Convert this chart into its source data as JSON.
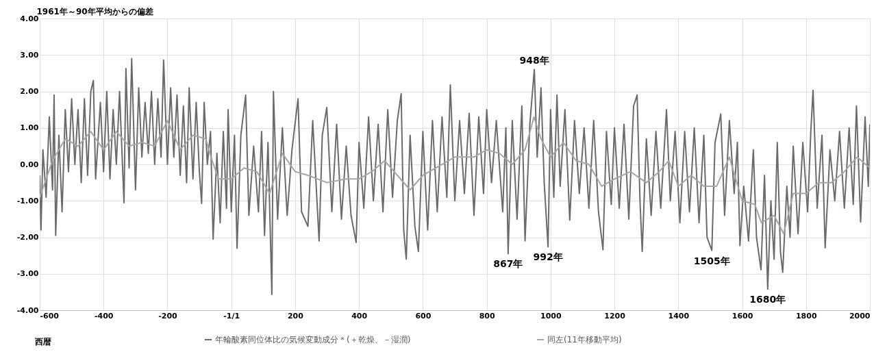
{
  "chart_data": {
    "type": "line",
    "ylabel": "1961年～90年平均からの偏差",
    "xlabel": "西暦",
    "xlim": [
      -600,
      2000
    ],
    "xticks": [
      -600,
      -400,
      -200,
      {
        "value": 0,
        "label": "-1/1"
      },
      200,
      400,
      600,
      800,
      1000,
      1200,
      1400,
      1600,
      1800,
      2000
    ],
    "ylim": [
      -4,
      4
    ],
    "yticks": [
      {
        "value": -4,
        "label": "-4.00"
      },
      {
        "value": -3,
        "label": "-3.00"
      },
      {
        "value": -2,
        "label": "-2.00"
      },
      {
        "value": -1,
        "label": "-1.00"
      },
      {
        "value": 0,
        "label": "0.00"
      },
      {
        "value": 1,
        "label": "1.00"
      },
      {
        "value": 2,
        "label": "2.00"
      },
      {
        "value": 3,
        "label": "3.00"
      },
      {
        "value": 4,
        "label": "4.00"
      }
    ],
    "grid": true,
    "legend": "bottom",
    "series": [
      {
        "name": "年輪酸素同位体比の気候変動成分＊(＋乾燥、－湿潤)",
        "color": "#6b6b6b",
        "x": [
          -600,
          -596,
          -590,
          -580,
          -570,
          -560,
          -555,
          -550,
          -540,
          -530,
          -520,
          -510,
          -500,
          -490,
          -480,
          -470,
          -460,
          -450,
          -440,
          -432,
          -425,
          -410,
          -400,
          -390,
          -380,
          -370,
          -360,
          -350,
          -340,
          -336,
          -330,
          -320,
          -312,
          -300,
          -290,
          -280,
          -270,
          -260,
          -250,
          -240,
          -230,
          -220,
          -212,
          -200,
          -190,
          -180,
          -170,
          -160,
          -150,
          -140,
          -132,
          -120,
          -110,
          -100,
          -93,
          -85,
          -75,
          -65,
          -57,
          -45,
          -35,
          -25,
          -15,
          -10,
          0,
          10,
          18,
          30,
          45,
          55,
          70,
          85,
          95,
          104,
          115,
          127,
          132,
          145,
          160,
          175,
          190,
          209,
          220,
          240,
          255,
          275,
          285,
          299,
          315,
          330,
          345,
          360,
          375,
          391,
          400,
          415,
          430,
          445,
          460,
          475,
          490,
          505,
          520,
          532,
          540,
          548,
          560,
          575,
          586,
          600,
          615,
          630,
          645,
          660,
          675,
          686,
          700,
          715,
          730,
          745,
          760,
          775,
          790,
          800,
          815,
          830,
          850,
          860,
          867,
          880,
          895,
          910,
          920,
          935,
          949,
          958,
          970,
          980,
          992,
          1000,
          1010,
          1020,
          1030,
          1045,
          1060,
          1075,
          1090,
          1105,
          1120,
          1135,
          1150,
          1164,
          1175,
          1190,
          1200,
          1215,
          1230,
          1245,
          1260,
          1271,
          1280,
          1287,
          1300,
          1315,
          1330,
          1345,
          1363,
          1375,
          1390,
          1405,
          1420,
          1435,
          1450,
          1465,
          1480,
          1490,
          1505,
          1515,
          1533,
          1545,
          1560,
          1575,
          1585,
          1593,
          1605,
          1620,
          1635,
          1645,
          1659,
          1670,
          1680,
          1690,
          1700,
          1710,
          1720,
          1727,
          1740,
          1750,
          1760,
          1775,
          1790,
          1805,
          1815,
          1822,
          1835,
          1850,
          1860,
          1875,
          1890,
          1905,
          1920,
          1935,
          1948,
          1958,
          1971,
          1985,
          1995,
          2000
        ],
        "values": [
          -0.3,
          -1.8,
          0.4,
          -0.9,
          1.3,
          -0.7,
          1.9,
          -1.95,
          0.8,
          -1.3,
          1.5,
          -0.2,
          1.8,
          0.0,
          1.5,
          -0.5,
          1.8,
          -0.3,
          2.0,
          2.3,
          -0.4,
          1.7,
          -0.2,
          2.0,
          -0.4,
          1.5,
          0.0,
          2.0,
          -0.2,
          -1.05,
          2.63,
          -0.1,
          2.9,
          -0.7,
          2.1,
          0.2,
          1.7,
          0.3,
          2.0,
          0.0,
          1.8,
          0.2,
          2.86,
          0.0,
          2.1,
          0.2,
          1.9,
          -0.3,
          1.6,
          -0.5,
          2.1,
          -0.4,
          1.7,
          -0.2,
          -1.07,
          1.7,
          0.0,
          0.9,
          -2.05,
          0.3,
          -1.6,
          0.9,
          -1.2,
          1.5,
          -1.3,
          0.8,
          -2.3,
          0.8,
          1.9,
          -1.4,
          0.5,
          -1.3,
          0.9,
          -1.95,
          0.6,
          -3.57,
          2.0,
          -1.5,
          1.0,
          -1.4,
          0.4,
          1.8,
          -1.3,
          -1.7,
          1.2,
          -2.1,
          0.8,
          1.56,
          -1.3,
          1.1,
          -1.5,
          0.5,
          -1.4,
          -2.14,
          0.6,
          -1.2,
          1.3,
          -1.0,
          1.1,
          -1.3,
          1.5,
          -0.9,
          1.2,
          1.94,
          -1.8,
          -2.6,
          0.8,
          -1.7,
          -2.39,
          0.9,
          -1.8,
          1.2,
          -1.3,
          1.3,
          -0.9,
          2.18,
          -1.0,
          1.2,
          -0.8,
          1.4,
          -1.4,
          1.3,
          -0.8,
          1.5,
          -0.5,
          1.2,
          -1.3,
          1.0,
          -2.45,
          1.2,
          -1.5,
          1.6,
          -2.1,
          1.1,
          2.6,
          0.2,
          2.1,
          -0.5,
          -2.26,
          1.5,
          -0.9,
          1.9,
          -0.6,
          1.5,
          -1.53,
          1.2,
          -0.8,
          1.0,
          -1.2,
          1.2,
          -1.3,
          -2.34,
          0.9,
          -1.1,
          1.0,
          -1.2,
          1.1,
          -1.5,
          1.6,
          1.9,
          -1.0,
          -2.39,
          0.7,
          -1.4,
          0.9,
          -1.2,
          1.5,
          -1.0,
          0.9,
          -1.6,
          0.9,
          -1.3,
          1.0,
          -1.6,
          0.8,
          -2.0,
          -2.36,
          0.6,
          1.38,
          -1.4,
          1.2,
          -0.8,
          0.6,
          -2.23,
          -0.6,
          -2.1,
          0.4,
          -2.0,
          -2.89,
          -0.3,
          -3.42,
          -1.0,
          -2.6,
          0.6,
          -2.4,
          -2.96,
          -0.6,
          -2.0,
          0.5,
          -1.9,
          0.6,
          -1.3,
          0.9,
          2.03,
          -1.2,
          0.8,
          -2.29,
          0.4,
          -1.0,
          0.9,
          -1.2,
          1.0,
          -1.1,
          1.6,
          -1.58,
          1.3,
          -0.6,
          1.1
        ]
      },
      {
        "name": "同左(11年移動平均)",
        "color": "#a6a6a6",
        "x": [
          -600,
          -560,
          -520,
          -480,
          -440,
          -400,
          -360,
          -320,
          -280,
          -240,
          -200,
          -160,
          -120,
          -80,
          -60,
          -40,
          0,
          40,
          80,
          120,
          160,
          200,
          240,
          300,
          360,
          400,
          440,
          480,
          520,
          560,
          600,
          640,
          700,
          760,
          800,
          840,
          880,
          920,
          948,
          970,
          1000,
          1040,
          1080,
          1120,
          1160,
          1200,
          1250,
          1300,
          1340,
          1370,
          1400,
          1440,
          1480,
          1520,
          1560,
          1600,
          1640,
          1660,
          1700,
          1730,
          1760,
          1800,
          1840,
          1880,
          1920,
          1960,
          2000
        ],
        "values": [
          -0.9,
          0.1,
          0.7,
          0.5,
          0.9,
          0.4,
          0.9,
          0.5,
          0.6,
          0.5,
          1.2,
          0.4,
          0.8,
          0.7,
          0.1,
          -0.4,
          -0.4,
          -0.1,
          -0.2,
          -0.8,
          0.3,
          -0.2,
          -0.3,
          -0.5,
          -0.4,
          -0.4,
          -0.2,
          0.1,
          -0.3,
          -0.7,
          -0.3,
          -0.1,
          0.2,
          0.2,
          0.4,
          0.3,
          0.0,
          0.4,
          1.3,
          0.7,
          0.2,
          0.6,
          0.1,
          0.0,
          -0.6,
          -0.4,
          -0.2,
          -0.5,
          -0.2,
          0.1,
          -0.6,
          -0.3,
          -0.6,
          -0.6,
          0.2,
          -1.0,
          -1.1,
          -1.6,
          -1.4,
          -1.9,
          -0.8,
          -0.8,
          -0.5,
          -0.5,
          -0.2,
          0.2,
          -0.1
        ]
      }
    ],
    "annotations": [
      {
        "text": "948年",
        "x": 949,
        "y": 2.6
      },
      {
        "text": "867年",
        "x": 867,
        "y": -2.45
      },
      {
        "text": "992年",
        "x": 992,
        "y": -2.26
      },
      {
        "text": "1505年",
        "x": 1505,
        "y": -2.36
      },
      {
        "text": "1680年",
        "x": 1680,
        "y": -3.42
      }
    ]
  }
}
